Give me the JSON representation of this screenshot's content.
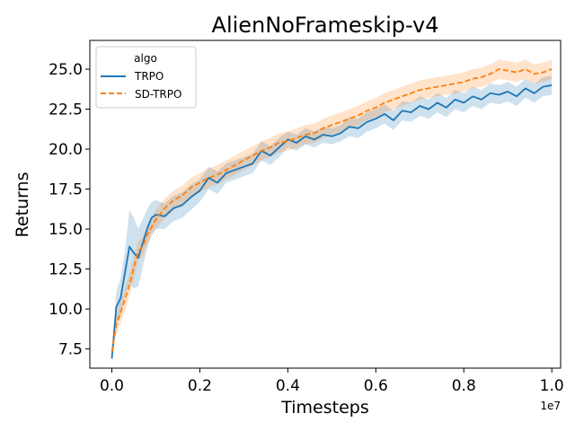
{
  "chart_data": {
    "type": "line",
    "title": "AlienNoFrameskip-v4",
    "xlabel": "Timesteps",
    "ylabel": "Returns",
    "x_offset_text": "1e7",
    "xlim": [
      -0.05,
      1.02
    ],
    "ylim": [
      6.3,
      26.8
    ],
    "x_ticks": [
      0.0,
      0.2,
      0.4,
      0.6,
      0.8,
      1.0
    ],
    "x_tick_labels": [
      "0.0",
      "0.2",
      "0.4",
      "0.6",
      "0.8",
      "1.0"
    ],
    "y_ticks": [
      7.5,
      10.0,
      12.5,
      15.0,
      17.5,
      20.0,
      22.5,
      25.0
    ],
    "y_tick_labels": [
      "7.5",
      "10.0",
      "12.5",
      "15.0",
      "17.5",
      "20.0",
      "22.5",
      "25.0"
    ],
    "grid": false,
    "legend": {
      "title": "algo",
      "placement": "top-left"
    },
    "series": [
      {
        "name": "TRPO",
        "color": "#1f77b4",
        "dash": "solid",
        "x": [
          0.0,
          0.01,
          0.02,
          0.03,
          0.04,
          0.05,
          0.06,
          0.07,
          0.08,
          0.09,
          0.1,
          0.12,
          0.14,
          0.16,
          0.18,
          0.2,
          0.22,
          0.24,
          0.26,
          0.28,
          0.3,
          0.32,
          0.34,
          0.36,
          0.38,
          0.4,
          0.42,
          0.44,
          0.46,
          0.48,
          0.5,
          0.52,
          0.54,
          0.56,
          0.58,
          0.6,
          0.62,
          0.64,
          0.66,
          0.68,
          0.7,
          0.72,
          0.74,
          0.76,
          0.78,
          0.8,
          0.82,
          0.84,
          0.86,
          0.88,
          0.9,
          0.92,
          0.94,
          0.96,
          0.98,
          1.0
        ],
        "y": [
          6.9,
          10.1,
          10.7,
          12.3,
          13.9,
          13.5,
          13.2,
          14.1,
          15.0,
          15.7,
          15.9,
          15.8,
          16.3,
          16.5,
          17.0,
          17.4,
          18.2,
          17.9,
          18.5,
          18.7,
          18.9,
          19.1,
          19.9,
          19.6,
          20.1,
          20.6,
          20.4,
          20.8,
          20.6,
          20.9,
          20.8,
          21.0,
          21.4,
          21.3,
          21.7,
          21.9,
          22.2,
          21.8,
          22.4,
          22.3,
          22.7,
          22.5,
          22.9,
          22.6,
          23.1,
          22.9,
          23.3,
          23.1,
          23.5,
          23.4,
          23.6,
          23.3,
          23.8,
          23.5,
          23.9,
          24.0
        ],
        "ci_width": [
          0.3,
          1.0,
          1.2,
          1.4,
          2.3,
          2.2,
          1.8,
          1.5,
          1.2,
          1.0,
          0.9,
          0.8,
          0.8,
          0.8,
          0.8,
          0.7,
          0.7,
          0.7,
          0.6,
          0.6,
          0.6,
          0.6,
          0.6,
          0.6,
          0.6,
          0.5,
          0.5,
          0.5,
          0.5,
          0.5,
          0.5,
          0.5,
          0.6,
          0.6,
          0.6,
          0.6,
          0.6,
          0.6,
          0.6,
          0.6,
          0.6,
          0.6,
          0.6,
          0.6,
          0.6,
          0.6,
          0.6,
          0.6,
          0.6,
          0.6,
          0.6,
          0.6,
          0.6,
          0.6,
          0.6,
          0.6
        ]
      },
      {
        "name": "SD-TRPO",
        "color": "#ff7f0e",
        "dash": "dashed",
        "x": [
          0.0,
          0.01,
          0.02,
          0.03,
          0.04,
          0.05,
          0.06,
          0.07,
          0.08,
          0.09,
          0.1,
          0.12,
          0.14,
          0.16,
          0.18,
          0.2,
          0.22,
          0.24,
          0.26,
          0.28,
          0.3,
          0.32,
          0.34,
          0.36,
          0.38,
          0.4,
          0.42,
          0.44,
          0.46,
          0.48,
          0.5,
          0.52,
          0.54,
          0.56,
          0.58,
          0.6,
          0.62,
          0.64,
          0.66,
          0.68,
          0.7,
          0.72,
          0.74,
          0.76,
          0.78,
          0.8,
          0.82,
          0.84,
          0.86,
          0.88,
          0.9,
          0.92,
          0.94,
          0.96,
          0.98,
          1.0
        ],
        "y": [
          7.3,
          9.0,
          9.8,
          10.6,
          11.5,
          12.6,
          13.6,
          13.9,
          14.6,
          15.1,
          15.6,
          16.3,
          16.8,
          17.1,
          17.6,
          17.9,
          18.2,
          18.4,
          18.7,
          19.0,
          19.3,
          19.6,
          19.9,
          20.1,
          20.4,
          20.5,
          20.7,
          20.9,
          21.0,
          21.3,
          21.5,
          21.7,
          21.9,
          22.1,
          22.4,
          22.6,
          22.9,
          23.1,
          23.3,
          23.5,
          23.7,
          23.8,
          23.9,
          24.0,
          24.1,
          24.2,
          24.4,
          24.5,
          24.7,
          25.0,
          24.9,
          24.8,
          25.0,
          24.7,
          24.8,
          25.0
        ],
        "ci_width": [
          0.4,
          0.6,
          0.7,
          0.7,
          0.7,
          0.7,
          0.6,
          0.6,
          0.6,
          0.6,
          0.6,
          0.6,
          0.6,
          0.6,
          0.6,
          0.6,
          0.6,
          0.6,
          0.6,
          0.6,
          0.6,
          0.6,
          0.6,
          0.6,
          0.6,
          0.6,
          0.6,
          0.6,
          0.6,
          0.6,
          0.6,
          0.6,
          0.6,
          0.6,
          0.6,
          0.6,
          0.6,
          0.6,
          0.6,
          0.6,
          0.6,
          0.6,
          0.6,
          0.6,
          0.6,
          0.6,
          0.6,
          0.6,
          0.6,
          0.6,
          0.6,
          0.6,
          0.6,
          0.6,
          0.6,
          0.6
        ]
      }
    ]
  }
}
